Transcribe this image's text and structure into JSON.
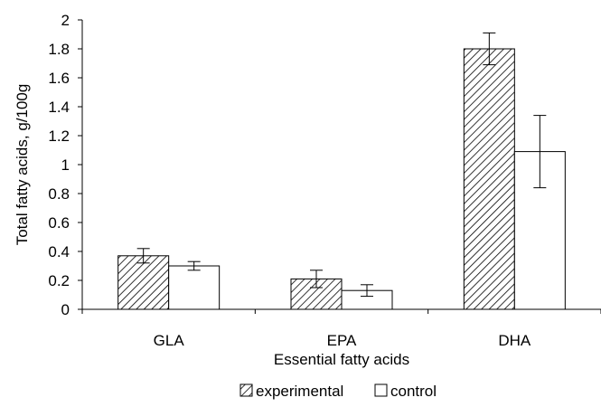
{
  "chart_data": {
    "type": "bar",
    "xlabel": "Essential fatty acids",
    "ylabel": "Total fatty acids, g/100g",
    "ylim": [
      0,
      2
    ],
    "yticks": [
      0,
      0.2,
      0.4,
      0.6,
      0.8,
      1,
      1.2,
      1.4,
      1.6,
      1.8,
      2
    ],
    "ytick_labels": [
      "0",
      "0.2",
      "0.4",
      "0.6",
      "0.8",
      "1",
      "1.2",
      "1.4",
      "1.6",
      "1.8",
      "2"
    ],
    "grid": false,
    "legend_position": "bottom",
    "categories": [
      "GLA",
      "EPA",
      "DHA"
    ],
    "series": [
      {
        "name": "experimental",
        "pattern": "diagonal-hatch",
        "values": [
          0.37,
          0.21,
          1.8
        ],
        "error_low": [
          0.32,
          0.15,
          1.69
        ],
        "error_high": [
          0.42,
          0.27,
          1.91
        ]
      },
      {
        "name": "control",
        "pattern": "white",
        "values": [
          0.3,
          0.13,
          1.09
        ],
        "error_low": [
          0.27,
          0.09,
          0.84
        ],
        "error_high": [
          0.33,
          0.17,
          1.34
        ]
      }
    ]
  }
}
